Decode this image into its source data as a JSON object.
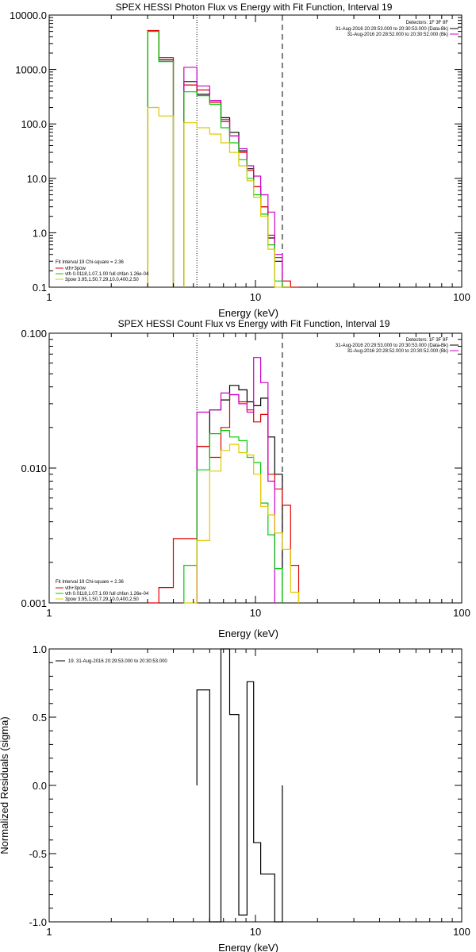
{
  "chart_data": [
    {
      "type": "line",
      "title": "SPEX HESSI Photon Flux vs Energy with Fit Function, Interval 19",
      "xlabel": "Energy (keV)",
      "ylabel": "",
      "xscale": "log",
      "yscale": "log",
      "xlim": [
        1,
        100
      ],
      "ylim": [
        0.1,
        10000
      ],
      "xticks": [
        "1",
        "10",
        "100"
      ],
      "yticks": [
        "0.1",
        "1.0",
        "10.0",
        "100.0",
        "1000.0",
        "10000.0"
      ],
      "info": {
        "detectors": "Detectors: 1F 3F 8F",
        "line1": "31-Aug-2016 20:29:53.000 to 20:30:53.000 (Data-Bk)",
        "line2": "31-Aug-2016 20:28:52.000 to 20:30:52.000 (Bk)"
      },
      "legend": [
        "Fit Interval 19    Chi-square = 2.36",
        "vth+3pow",
        "vth 0.0118,1.07,1.00  full chfan 1.26e-04",
        "3pow 3.95,1.50,7.29,10.0,400,2.50"
      ],
      "vlines": [
        {
          "x": 5.2,
          "style": "dotted"
        },
        {
          "x": 13.5,
          "style": "dashed"
        }
      ],
      "bin_edges": [
        3,
        3.4,
        4,
        4.5,
        5.2,
        6,
        6.8,
        7.5,
        8.3,
        9.1,
        9.8,
        10.6,
        11.5,
        12.4,
        13.5,
        14.8,
        16.2
      ],
      "series": [
        {
          "color": "#000000",
          "values": [
            5100,
            1500,
            null,
            600,
            350,
            250,
            130,
            70,
            32,
            15,
            7,
            3,
            0.8,
            0.3,
            0.08,
            null
          ]
        },
        {
          "color": "#e00000",
          "values": [
            5200,
            1650,
            null,
            520,
            420,
            250,
            120,
            60,
            30,
            14,
            7,
            3,
            0.9,
            0.35,
            0.13,
            0.1
          ]
        },
        {
          "color": "#cc00cc",
          "values": [
            null,
            null,
            null,
            1100,
            500,
            270,
            110,
            60,
            35,
            17,
            11,
            5,
            2.4,
            0.4,
            0.08,
            null
          ]
        },
        {
          "color": "#00cc00",
          "values": [
            5000,
            1400,
            null,
            390,
            330,
            230,
            85,
            45,
            22,
            10,
            5,
            2.2,
            0.6,
            0.13,
            0.07,
            null
          ]
        },
        {
          "color": "#e0c800",
          "values": [
            200,
            140,
            null,
            105,
            85,
            65,
            45,
            30,
            17,
            9,
            4.5,
            2,
            0.5,
            0.1,
            0.05,
            null
          ]
        }
      ]
    },
    {
      "type": "line",
      "title": "SPEX HESSI Count Flux vs Energy with Fit Function, Interval 19",
      "xlabel": "Energy (keV)",
      "ylabel": "",
      "xscale": "log",
      "yscale": "log",
      "xlim": [
        1,
        100
      ],
      "ylim": [
        0.001,
        0.1
      ],
      "xticks": [
        "1",
        "10",
        "100"
      ],
      "yticks": [
        "0.001",
        "0.010",
        "0.100"
      ],
      "info": {
        "detectors": "Detectors: 1F 3F 8F",
        "line1": "31-Aug-2016 20:29:53.000 to 20:30:53.000 (Data-Bk)",
        "line2": "31-Aug-2016 20:28:52.000 to 20:30:52.000 (Bk)"
      },
      "legend": [
        "Fit Interval 19    Chi-square = 2.36",
        "vth+3pow",
        "vth 0.0118,1.07,1.00  full chfan 1.26e-04",
        "3pow 3.95,1.50,7.29,10.0,400,2.50"
      ],
      "vlines": [
        {
          "x": 5.2,
          "style": "dotted"
        },
        {
          "x": 13.5,
          "style": "dashed"
        }
      ],
      "bin_edges": [
        3,
        3.4,
        4,
        4.5,
        5.2,
        6,
        6.8,
        7.5,
        8.3,
        9.1,
        9.8,
        10.6,
        11.5,
        12.4,
        13.5,
        14.8,
        16.2
      ],
      "series": [
        {
          "color": "#000000",
          "values": [
            null,
            null,
            null,
            null,
            0.0145,
            0.027,
            0.032,
            0.041,
            0.038,
            0.031,
            0.029,
            0.033,
            0.017,
            0.009,
            null,
            null
          ]
        },
        {
          "color": "#e00000",
          "values": [
            0.001,
            0.0013,
            0.003,
            0.003,
            0.0145,
            0.012,
            0.02,
            0.035,
            0.031,
            0.027,
            0.022,
            0.025,
            0.009,
            0.007,
            0.0053,
            0.0019
          ]
        },
        {
          "color": "#cc00cc",
          "values": [
            null,
            null,
            null,
            null,
            0.026,
            0.027,
            0.036,
            0.035,
            0.03,
            0.026,
            0.066,
            0.043,
            0.008,
            null,
            null,
            null
          ]
        },
        {
          "color": "#00cc00",
          "values": [
            null,
            null,
            null,
            0.0019,
            0.0097,
            0.018,
            0.019,
            0.017,
            0.016,
            0.012,
            0.011,
            0.0055,
            0.0032,
            0.0018,
            null,
            null
          ]
        },
        {
          "color": "#e0c800",
          "values": [
            null,
            null,
            null,
            0.001,
            0.0029,
            0.0095,
            0.0135,
            0.015,
            0.013,
            0.0125,
            0.009,
            0.0052,
            0.0045,
            0.0033,
            0.0025,
            0.0012
          ]
        }
      ]
    },
    {
      "type": "line",
      "title": "",
      "xlabel": "Energy (keV)",
      "ylabel": "Normalized Residuals (sigma)",
      "xscale": "log",
      "yscale": "linear",
      "xlim": [
        1,
        100
      ],
      "ylim": [
        -1.0,
        1.0
      ],
      "xticks": [
        "1",
        "10",
        "100"
      ],
      "yticks": [
        "-1.0",
        "-0.5",
        "0.0",
        "0.5",
        "1.0"
      ],
      "legend": [
        "19. 31-Aug-2016 20:29:53.000 to 20:30:53.000"
      ],
      "bin_edges": [
        5.2,
        6,
        6.8,
        7.5,
        8.3,
        9.1,
        9.8,
        10.6,
        11.5,
        12.4,
        13.5
      ],
      "series": [
        {
          "color": "#000000",
          "values": [
            0.7,
            -1.0,
            1.0,
            0.52,
            -0.95,
            0.76,
            -0.42,
            -0.65,
            -0.65,
            -1.0
          ]
        }
      ]
    }
  ]
}
